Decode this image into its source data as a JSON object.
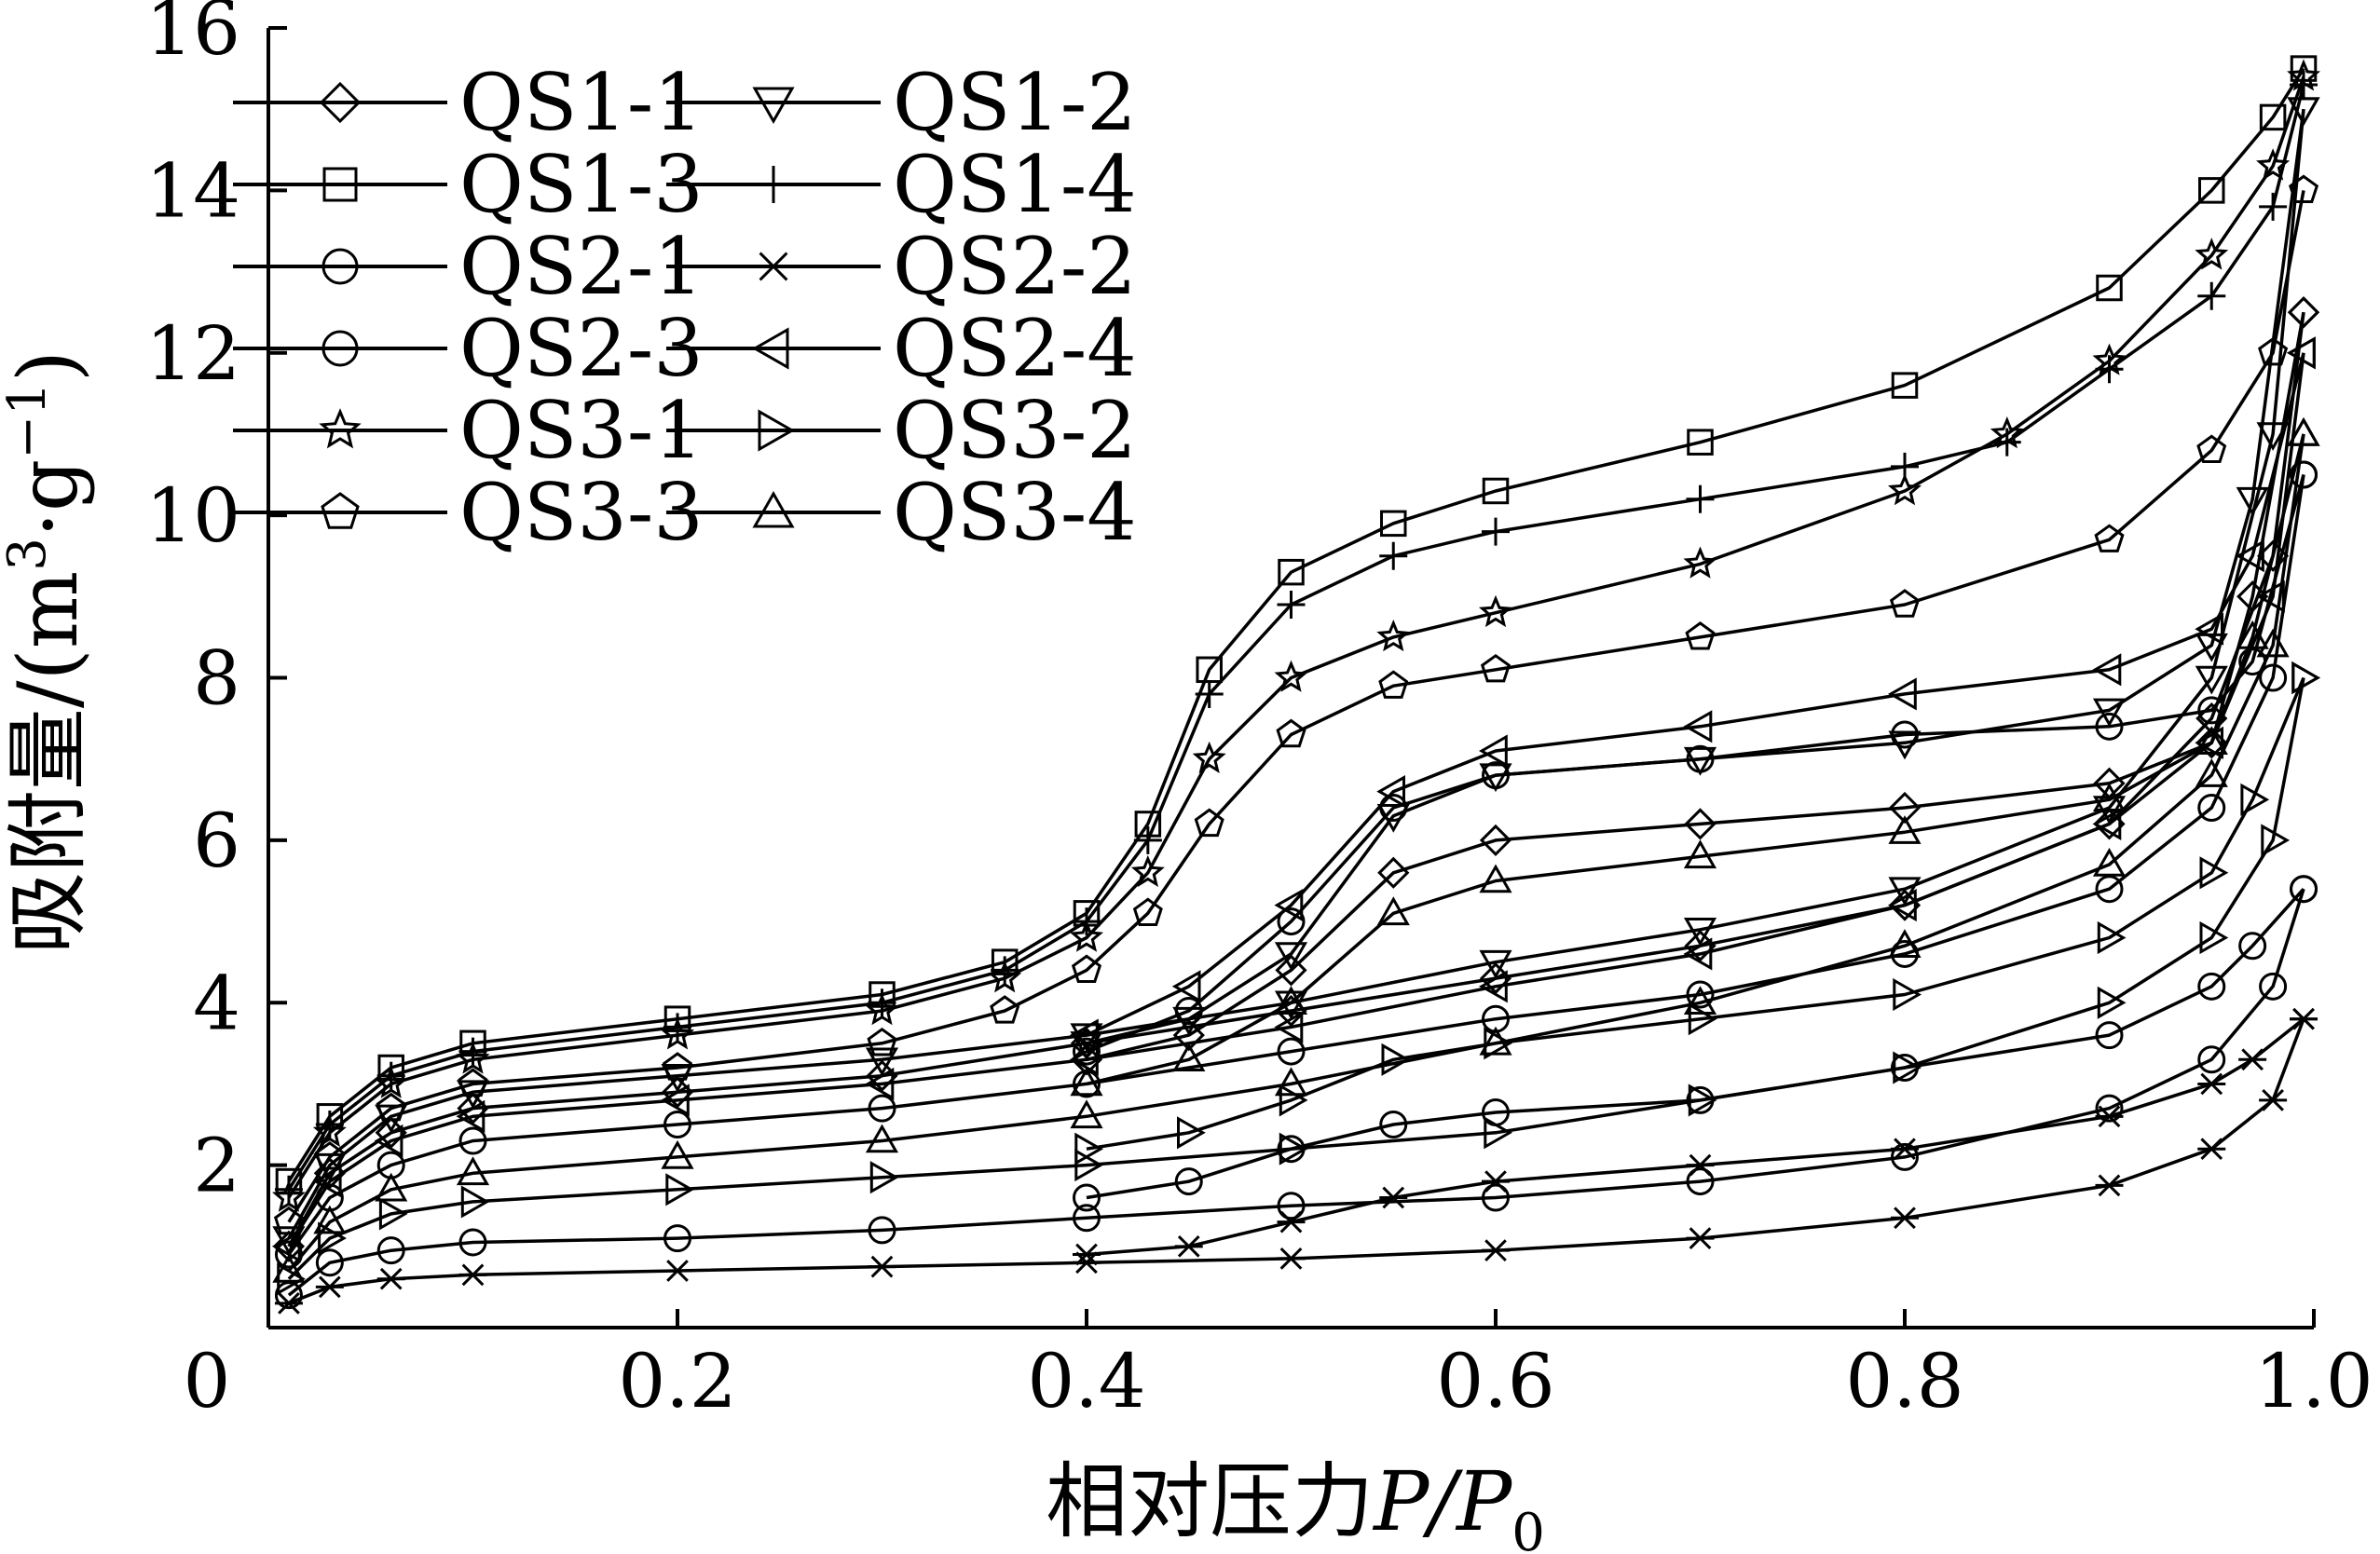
{
  "chart_data": {
    "type": "line",
    "title": "",
    "xlabel": "相对压力P/P0",
    "xlabel_parts": {
      "main": "相对压力",
      "var": "P/P",
      "sub": "0"
    },
    "ylabel": "吸附量/(m3·g−1)",
    "ylabel_parts": {
      "main": "吸附量/(m",
      "sup1": "3",
      "mid": "·g",
      "sup2": "−1",
      "end": ")"
    },
    "xlim": [
      0,
      1.0
    ],
    "ylim": [
      0,
      16
    ],
    "x_ticks": [
      "0",
      "0.2",
      "0.4",
      "0.6",
      "0.8",
      "1.0"
    ],
    "y_ticks": [
      "2",
      "4",
      "6",
      "8",
      "10",
      "12",
      "14",
      "16"
    ],
    "grid": false,
    "legend_position": "top-left",
    "series": [
      {
        "name": "QS1-1",
        "marker": "diamond",
        "adsorption": [
          [
            0.01,
            1.0
          ],
          [
            0.03,
            1.9
          ],
          [
            0.06,
            2.4
          ],
          [
            0.1,
            2.7
          ],
          [
            0.2,
            2.9
          ],
          [
            0.3,
            3.1
          ],
          [
            0.4,
            3.5
          ],
          [
            0.5,
            3.9
          ],
          [
            0.6,
            4.3
          ],
          [
            0.7,
            4.7
          ],
          [
            0.8,
            5.2
          ],
          [
            0.9,
            6.2
          ],
          [
            0.95,
            7.5
          ],
          [
            0.98,
            9.5
          ],
          [
            0.995,
            12.5
          ]
        ],
        "desorption": [
          [
            0.995,
            12.5
          ],
          [
            0.97,
            9.0
          ],
          [
            0.95,
            7.2
          ],
          [
            0.9,
            6.7
          ],
          [
            0.8,
            6.4
          ],
          [
            0.7,
            6.2
          ],
          [
            0.6,
            6.0
          ],
          [
            0.55,
            5.6
          ],
          [
            0.5,
            4.4
          ],
          [
            0.45,
            3.6
          ],
          [
            0.4,
            3.3
          ]
        ]
      },
      {
        "name": "QS1-2",
        "marker": "triangle-down",
        "adsorption": [
          [
            0.01,
            1.1
          ],
          [
            0.03,
            2.0
          ],
          [
            0.06,
            2.6
          ],
          [
            0.1,
            2.9
          ],
          [
            0.2,
            3.1
          ],
          [
            0.3,
            3.3
          ],
          [
            0.4,
            3.6
          ],
          [
            0.5,
            4.0
          ],
          [
            0.6,
            4.5
          ],
          [
            0.7,
            4.9
          ],
          [
            0.8,
            5.4
          ],
          [
            0.9,
            6.4
          ],
          [
            0.95,
            8.0
          ],
          [
            0.98,
            11.0
          ],
          [
            0.995,
            15.0
          ]
        ],
        "desorption": [
          [
            0.995,
            15.0
          ],
          [
            0.97,
            10.2
          ],
          [
            0.95,
            8.4
          ],
          [
            0.9,
            7.6
          ],
          [
            0.8,
            7.2
          ],
          [
            0.7,
            7.0
          ],
          [
            0.6,
            6.8
          ],
          [
            0.55,
            6.3
          ],
          [
            0.5,
            4.6
          ],
          [
            0.45,
            3.8
          ],
          [
            0.4,
            3.5
          ]
        ]
      },
      {
        "name": "QS1-3",
        "marker": "square",
        "adsorption": [
          [
            0.01,
            1.8
          ],
          [
            0.03,
            2.6
          ],
          [
            0.06,
            3.2
          ],
          [
            0.1,
            3.5
          ],
          [
            0.2,
            3.8
          ],
          [
            0.3,
            4.1
          ],
          [
            0.36,
            4.5
          ],
          [
            0.4,
            5.1
          ],
          [
            0.43,
            6.2
          ],
          [
            0.46,
            8.1
          ],
          [
            0.5,
            9.3
          ],
          [
            0.55,
            9.9
          ],
          [
            0.6,
            10.3
          ],
          [
            0.7,
            10.9
          ],
          [
            0.8,
            11.6
          ],
          [
            0.9,
            12.8
          ],
          [
            0.95,
            14.0
          ],
          [
            0.98,
            14.9
          ],
          [
            0.995,
            15.5
          ]
        ],
        "desorption": []
      },
      {
        "name": "QS1-4",
        "marker": "plus",
        "adsorption": [
          [
            0.01,
            1.7
          ],
          [
            0.03,
            2.5
          ],
          [
            0.06,
            3.1
          ],
          [
            0.1,
            3.4
          ],
          [
            0.2,
            3.7
          ],
          [
            0.3,
            4.0
          ],
          [
            0.36,
            4.4
          ],
          [
            0.4,
            5.0
          ],
          [
            0.43,
            6.0
          ],
          [
            0.46,
            7.8
          ],
          [
            0.5,
            8.9
          ],
          [
            0.55,
            9.5
          ],
          [
            0.6,
            9.8
          ],
          [
            0.7,
            10.2
          ],
          [
            0.8,
            10.6
          ],
          [
            0.85,
            10.9
          ],
          [
            0.9,
            11.8
          ],
          [
            0.95,
            12.7
          ],
          [
            0.98,
            13.8
          ],
          [
            0.995,
            15.3
          ]
        ],
        "desorption": []
      },
      {
        "name": "QS2-1",
        "marker": "circle",
        "adsorption": [
          [
            0.01,
            0.4
          ],
          [
            0.03,
            0.8
          ],
          [
            0.06,
            0.95
          ],
          [
            0.1,
            1.05
          ],
          [
            0.2,
            1.1
          ],
          [
            0.3,
            1.2
          ],
          [
            0.4,
            1.35
          ],
          [
            0.5,
            1.5
          ],
          [
            0.6,
            1.6
          ],
          [
            0.7,
            1.8
          ],
          [
            0.8,
            2.1
          ],
          [
            0.9,
            2.7
          ],
          [
            0.95,
            3.3
          ],
          [
            0.98,
            4.2
          ],
          [
            0.995,
            5.4
          ]
        ],
        "desorption": [
          [
            0.995,
            5.4
          ],
          [
            0.97,
            4.7
          ],
          [
            0.95,
            4.2
          ],
          [
            0.9,
            3.6
          ],
          [
            0.8,
            3.2
          ],
          [
            0.7,
            2.8
          ],
          [
            0.6,
            2.65
          ],
          [
            0.55,
            2.5
          ],
          [
            0.5,
            2.2
          ],
          [
            0.45,
            1.8
          ],
          [
            0.4,
            1.6
          ]
        ]
      },
      {
        "name": "QS2-2",
        "marker": "asterisk",
        "adsorption": [
          [
            0.01,
            0.3
          ],
          [
            0.03,
            0.5
          ],
          [
            0.06,
            0.6
          ],
          [
            0.1,
            0.65
          ],
          [
            0.2,
            0.7
          ],
          [
            0.3,
            0.75
          ],
          [
            0.4,
            0.8
          ],
          [
            0.5,
            0.85
          ],
          [
            0.6,
            0.95
          ],
          [
            0.7,
            1.1
          ],
          [
            0.8,
            1.35
          ],
          [
            0.9,
            1.75
          ],
          [
            0.95,
            2.2
          ],
          [
            0.98,
            2.8
          ],
          [
            0.995,
            3.8
          ]
        ],
        "desorption": [
          [
            0.995,
            3.8
          ],
          [
            0.97,
            3.3
          ],
          [
            0.95,
            3.0
          ],
          [
            0.9,
            2.6
          ],
          [
            0.8,
            2.2
          ],
          [
            0.7,
            2.0
          ],
          [
            0.6,
            1.8
          ],
          [
            0.55,
            1.6
          ],
          [
            0.5,
            1.3
          ],
          [
            0.45,
            1.0
          ],
          [
            0.4,
            0.9
          ]
        ]
      },
      {
        "name": "QS2-3",
        "marker": "circle",
        "adsorption": [
          [
            0.01,
            0.9
          ],
          [
            0.03,
            1.6
          ],
          [
            0.06,
            2.0
          ],
          [
            0.1,
            2.3
          ],
          [
            0.2,
            2.5
          ],
          [
            0.3,
            2.7
          ],
          [
            0.4,
            3.0
          ],
          [
            0.5,
            3.4
          ],
          [
            0.6,
            3.8
          ],
          [
            0.7,
            4.1
          ],
          [
            0.8,
            4.6
          ],
          [
            0.9,
            5.4
          ],
          [
            0.95,
            6.4
          ],
          [
            0.98,
            8.0
          ],
          [
            0.995,
            10.5
          ]
        ],
        "desorption": [
          [
            0.995,
            10.5
          ],
          [
            0.97,
            8.2
          ],
          [
            0.95,
            7.6
          ],
          [
            0.9,
            7.4
          ],
          [
            0.8,
            7.3
          ],
          [
            0.7,
            7.0
          ],
          [
            0.6,
            6.8
          ],
          [
            0.55,
            6.4
          ],
          [
            0.5,
            5.0
          ],
          [
            0.45,
            3.9
          ],
          [
            0.4,
            3.4
          ]
        ]
      },
      {
        "name": "QS2-4",
        "marker": "triangle-left",
        "adsorption": [
          [
            0.01,
            1.0
          ],
          [
            0.03,
            1.8
          ],
          [
            0.06,
            2.3
          ],
          [
            0.1,
            2.6
          ],
          [
            0.2,
            2.8
          ],
          [
            0.3,
            3.0
          ],
          [
            0.4,
            3.3
          ],
          [
            0.5,
            3.7
          ],
          [
            0.6,
            4.2
          ],
          [
            0.7,
            4.6
          ],
          [
            0.8,
            5.2
          ],
          [
            0.9,
            6.2
          ],
          [
            0.95,
            7.2
          ],
          [
            0.98,
            9.0
          ],
          [
            0.995,
            12.0
          ]
        ],
        "desorption": [
          [
            0.995,
            12.0
          ],
          [
            0.97,
            9.5
          ],
          [
            0.95,
            8.6
          ],
          [
            0.9,
            8.1
          ],
          [
            0.8,
            7.8
          ],
          [
            0.7,
            7.4
          ],
          [
            0.6,
            7.1
          ],
          [
            0.55,
            6.6
          ],
          [
            0.5,
            5.2
          ],
          [
            0.45,
            4.2
          ],
          [
            0.4,
            3.6
          ]
        ]
      },
      {
        "name": "QS3-1",
        "marker": "star",
        "adsorption": [
          [
            0.01,
            1.6
          ],
          [
            0.03,
            2.4
          ],
          [
            0.06,
            3.0
          ],
          [
            0.1,
            3.3
          ],
          [
            0.2,
            3.6
          ],
          [
            0.3,
            3.9
          ],
          [
            0.36,
            4.3
          ],
          [
            0.4,
            4.8
          ],
          [
            0.43,
            5.6
          ],
          [
            0.46,
            7.0
          ],
          [
            0.5,
            8.0
          ],
          [
            0.55,
            8.5
          ],
          [
            0.6,
            8.8
          ],
          [
            0.7,
            9.4
          ],
          [
            0.8,
            10.3
          ],
          [
            0.85,
            11.0
          ],
          [
            0.9,
            11.9
          ],
          [
            0.95,
            13.2
          ],
          [
            0.98,
            14.3
          ],
          [
            0.995,
            15.4
          ]
        ],
        "desorption": []
      },
      {
        "name": "QS3-2",
        "marker": "triangle-right",
        "adsorption": [
          [
            0.01,
            0.6
          ],
          [
            0.03,
            1.1
          ],
          [
            0.06,
            1.4
          ],
          [
            0.1,
            1.55
          ],
          [
            0.2,
            1.7
          ],
          [
            0.3,
            1.85
          ],
          [
            0.4,
            2.0
          ],
          [
            0.5,
            2.2
          ],
          [
            0.6,
            2.4
          ],
          [
            0.7,
            2.8
          ],
          [
            0.8,
            3.2
          ],
          [
            0.9,
            4.0
          ],
          [
            0.95,
            4.8
          ],
          [
            0.98,
            6.0
          ],
          [
            0.995,
            8.0
          ]
        ],
        "desorption": [
          [
            0.995,
            8.0
          ],
          [
            0.97,
            6.5
          ],
          [
            0.95,
            5.6
          ],
          [
            0.9,
            4.8
          ],
          [
            0.8,
            4.1
          ],
          [
            0.7,
            3.8
          ],
          [
            0.6,
            3.5
          ],
          [
            0.55,
            3.3
          ],
          [
            0.5,
            2.8
          ],
          [
            0.45,
            2.4
          ],
          [
            0.4,
            2.2
          ]
        ]
      },
      {
        "name": "QS3-3",
        "marker": "pentagon",
        "adsorption": [
          [
            0.01,
            1.3
          ],
          [
            0.03,
            2.1
          ],
          [
            0.06,
            2.7
          ],
          [
            0.1,
            3.0
          ],
          [
            0.2,
            3.2
          ],
          [
            0.3,
            3.5
          ],
          [
            0.36,
            3.9
          ],
          [
            0.4,
            4.4
          ],
          [
            0.43,
            5.1
          ],
          [
            0.46,
            6.2
          ],
          [
            0.5,
            7.3
          ],
          [
            0.55,
            7.9
          ],
          [
            0.6,
            8.1
          ],
          [
            0.7,
            8.5
          ],
          [
            0.8,
            8.9
          ],
          [
            0.9,
            9.7
          ],
          [
            0.95,
            10.8
          ],
          [
            0.98,
            12.0
          ],
          [
            0.995,
            14.0
          ]
        ],
        "desorption": []
      },
      {
        "name": "QS3-4",
        "marker": "triangle-up",
        "adsorption": [
          [
            0.01,
            0.7
          ],
          [
            0.03,
            1.3
          ],
          [
            0.06,
            1.7
          ],
          [
            0.1,
            1.9
          ],
          [
            0.2,
            2.1
          ],
          [
            0.3,
            2.3
          ],
          [
            0.4,
            2.6
          ],
          [
            0.5,
            3.0
          ],
          [
            0.6,
            3.5
          ],
          [
            0.7,
            4.0
          ],
          [
            0.8,
            4.7
          ],
          [
            0.9,
            5.7
          ],
          [
            0.95,
            6.8
          ],
          [
            0.98,
            8.4
          ],
          [
            0.995,
            11.0
          ]
        ],
        "desorption": [
          [
            0.995,
            11.0
          ],
          [
            0.97,
            8.5
          ],
          [
            0.95,
            7.2
          ],
          [
            0.9,
            6.5
          ],
          [
            0.8,
            6.1
          ],
          [
            0.7,
            5.8
          ],
          [
            0.6,
            5.5
          ],
          [
            0.55,
            5.1
          ],
          [
            0.5,
            4.0
          ],
          [
            0.45,
            3.3
          ],
          [
            0.4,
            3.0
          ]
        ]
      }
    ]
  }
}
